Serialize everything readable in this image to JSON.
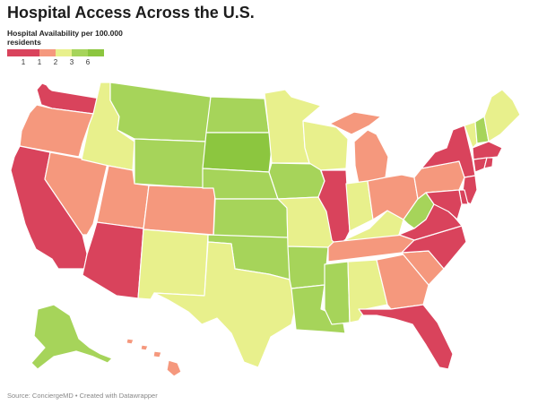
{
  "title": "Hospital Access Across the U.S.",
  "legend": {
    "title": "Hospital Availability per 100.000 residents",
    "tick_labels": [
      "1",
      "1",
      "2",
      "3",
      "6"
    ]
  },
  "colors": {
    "very_low": "#d9435c",
    "low": "#f5987d",
    "medium": "#e8f08c",
    "high": "#a6d45a",
    "very_high": "#8cc63f"
  },
  "legend_bins": [
    "very_low",
    "very_low",
    "low",
    "medium",
    "high",
    "very_high"
  ],
  "source": "Source: ConciergeMD • Created with Datawrapper",
  "states": {
    "WA": "very_low",
    "OR": "low",
    "CA": "very_low",
    "NV": "low",
    "ID": "medium",
    "MT": "high",
    "WY": "high",
    "UT": "low",
    "AZ": "very_low",
    "CO": "low",
    "NM": "medium",
    "ND": "high",
    "SD": "very_high",
    "NE": "high",
    "KS": "high",
    "OK": "high",
    "TX": "medium",
    "MN": "medium",
    "IA": "high",
    "MO": "medium",
    "AR": "high",
    "LA": "high",
    "WI": "medium",
    "IL": "very_low",
    "MS": "high",
    "MI": "low",
    "IN": "medium",
    "KY": "medium",
    "TN": "low",
    "AL": "medium",
    "OH": "low",
    "WV": "high",
    "GA": "low",
    "FL": "very_low",
    "SC": "low",
    "NC": "very_low",
    "VA": "very_low",
    "PA": "low",
    "NY": "very_low",
    "VT": "medium",
    "NH": "high",
    "ME": "medium",
    "MA": "very_low",
    "CT": "very_low",
    "RI": "very_low",
    "NJ": "very_low",
    "DE": "very_low",
    "MD": "very_low",
    "AK": "high",
    "HI": "low"
  }
}
